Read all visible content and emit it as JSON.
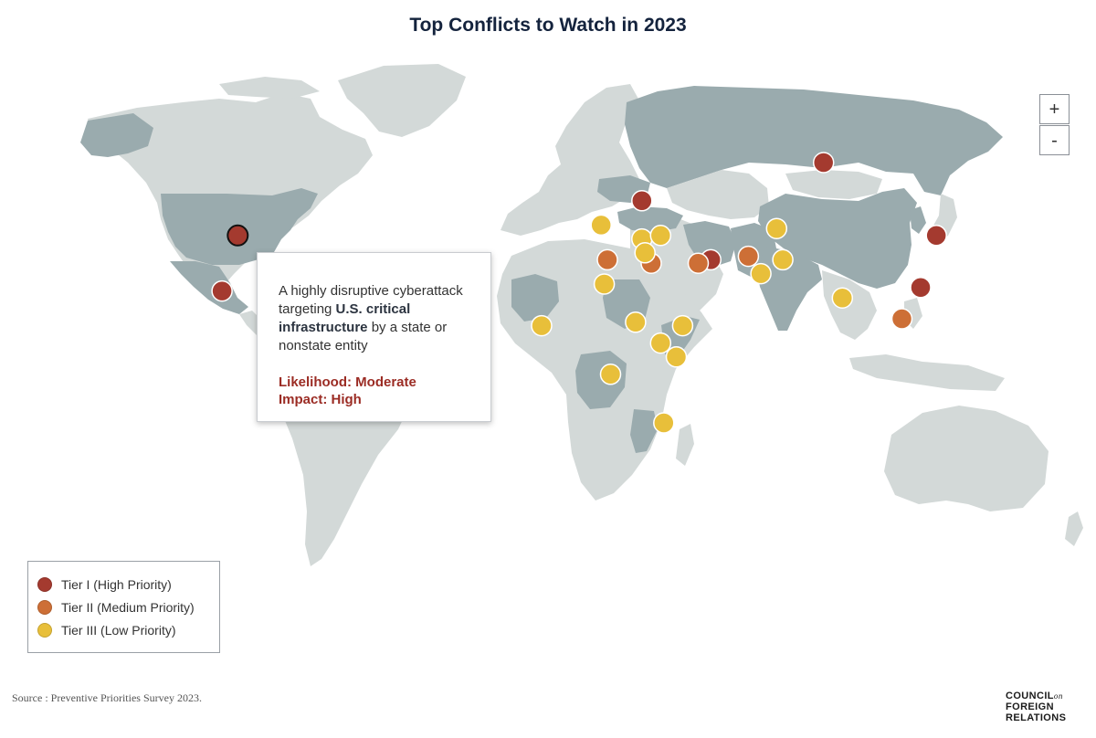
{
  "title": "Top Conflicts to Watch in 2023",
  "zoom": {
    "in_label": "+",
    "out_label": "-"
  },
  "colors": {
    "tier1": "#a43a2f",
    "tier2": "#cd6f36",
    "tier3": "#e8bf3a",
    "land_highlight": "#9aabae",
    "land_base": "#d3d9d8",
    "ocean": "#ffffff"
  },
  "tooltip": {
    "line_a": "A highly disruptive cyberattack targeting ",
    "bold": "U.S. critical infrastructure",
    "line_b": " by a state or nonstate entity",
    "likelihood": "Likelihood: Moderate",
    "impact": "Impact: High"
  },
  "legend": [
    {
      "label": "Tier I (High Priority)",
      "tier": "tier1"
    },
    {
      "label": "Tier II (Medium Priority)",
      "tier": "tier2"
    },
    {
      "label": "Tier III (Low Priority)",
      "tier": "tier3"
    }
  ],
  "source": "Source : Preventive Priorities Survey 2023.",
  "logo": {
    "line1": "COUNCIL",
    "on": "on",
    "line2": "FOREIGN",
    "line3": "RELATIONS"
  },
  "markers": [
    {
      "place": "United States",
      "tier": "tier1",
      "lat": 39,
      "lon": -97,
      "selected": true
    },
    {
      "place": "Mexico",
      "tier": "tier1",
      "lat": 23,
      "lon": -102
    },
    {
      "place": "Russia",
      "tier": "tier1",
      "lat": 60,
      "lon": 90
    },
    {
      "place": "Ukraine",
      "tier": "tier1",
      "lat": 49,
      "lon": 32
    },
    {
      "place": "Iran",
      "tier": "tier1",
      "lat": 32,
      "lon": 54
    },
    {
      "place": "Korean Peninsula",
      "tier": "tier1",
      "lat": 39,
      "lon": 126
    },
    {
      "place": "Taiwan",
      "tier": "tier1",
      "lat": 24,
      "lon": 121
    },
    {
      "place": "Libya",
      "tier": "tier2",
      "lat": 32,
      "lon": 21
    },
    {
      "place": "Israel",
      "tier": "tier2",
      "lat": 31,
      "lon": 35
    },
    {
      "place": "Gulf",
      "tier": "tier2",
      "lat": 31,
      "lon": 50
    },
    {
      "place": "Afghanistan",
      "tier": "tier2",
      "lat": 33,
      "lon": 66
    },
    {
      "place": "South China Sea",
      "tier": "tier2",
      "lat": 15,
      "lon": 115
    },
    {
      "place": "Balkans",
      "tier": "tier3",
      "lat": 42,
      "lon": 19
    },
    {
      "place": "Turkey",
      "tier": "tier3",
      "lat": 38,
      "lon": 32
    },
    {
      "place": "Caucasus",
      "tier": "tier3",
      "lat": 39,
      "lon": 38
    },
    {
      "place": "Lebanon",
      "tier": "tier3",
      "lat": 34,
      "lon": 33
    },
    {
      "place": "Kyrgyzstan",
      "tier": "tier3",
      "lat": 41,
      "lon": 75
    },
    {
      "place": "Pakistan",
      "tier": "tier3",
      "lat": 28,
      "lon": 70
    },
    {
      "place": "Kashmir",
      "tier": "tier3",
      "lat": 32,
      "lon": 77
    },
    {
      "place": "Egypt",
      "tier": "tier3",
      "lat": 25,
      "lon": 20
    },
    {
      "place": "Sahel",
      "tier": "tier3",
      "lat": 13,
      "lon": 0
    },
    {
      "place": "Sudan",
      "tier": "tier3",
      "lat": 14,
      "lon": 30
    },
    {
      "place": "Yemen",
      "tier": "tier3",
      "lat": 13,
      "lon": 45
    },
    {
      "place": "Ethiopia",
      "tier": "tier3",
      "lat": 8,
      "lon": 38
    },
    {
      "place": "Somalia",
      "tier": "tier3",
      "lat": 4,
      "lon": 43
    },
    {
      "place": "DR Congo",
      "tier": "tier3",
      "lat": -1,
      "lon": 22
    },
    {
      "place": "Mozambique",
      "tier": "tier3",
      "lat": -15,
      "lon": 39
    },
    {
      "place": "Myanmar",
      "tier": "tier3",
      "lat": 21,
      "lon": 96
    }
  ]
}
